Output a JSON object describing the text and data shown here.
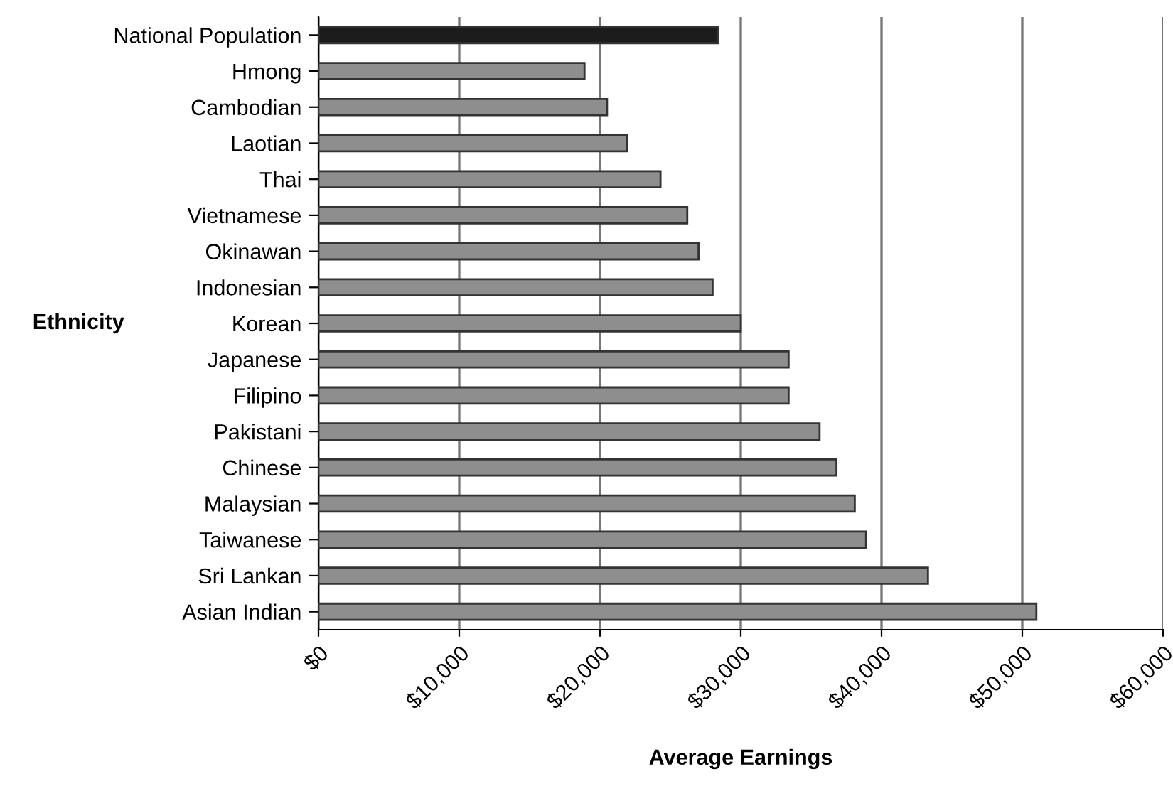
{
  "chart_data": {
    "type": "bar",
    "orientation": "horizontal",
    "xlabel": "Average Earnings",
    "ylabel": "Ethnicity",
    "categories": [
      "National Population",
      "Hmong",
      "Cambodian",
      "Laotian",
      "Thai",
      "Vietnamese",
      "Okinawan",
      "Indonesian",
      "Korean",
      "Japanese",
      "Filipino",
      "Pakistani",
      "Chinese",
      "Malaysian",
      "Taiwanese",
      "Sri Lankan",
      "Asian Indian"
    ],
    "values": [
      28400,
      18900,
      20500,
      21900,
      24300,
      26200,
      27000,
      28000,
      30000,
      33400,
      33400,
      35600,
      36800,
      38100,
      38900,
      43300,
      51000
    ],
    "colors": [
      "#1c1c1c",
      "#8e8e8e",
      "#8e8e8e",
      "#8e8e8e",
      "#8e8e8e",
      "#8e8e8e",
      "#8e8e8e",
      "#8e8e8e",
      "#8e8e8e",
      "#8e8e8e",
      "#8e8e8e",
      "#8e8e8e",
      "#8e8e8e",
      "#8e8e8e",
      "#8e8e8e",
      "#8e8e8e",
      "#8e8e8e"
    ],
    "xlim": [
      0,
      60000
    ],
    "xticks": [
      {
        "value": 0,
        "label": "$0"
      },
      {
        "value": 10000,
        "label": "$10,000"
      },
      {
        "value": 20000,
        "label": "$20,000"
      },
      {
        "value": 30000,
        "label": "$30,000"
      },
      {
        "value": 40000,
        "label": "$40,000"
      },
      {
        "value": 50000,
        "label": "$50,000"
      },
      {
        "value": 60000,
        "label": "$60,000"
      }
    ],
    "grid": "x"
  }
}
